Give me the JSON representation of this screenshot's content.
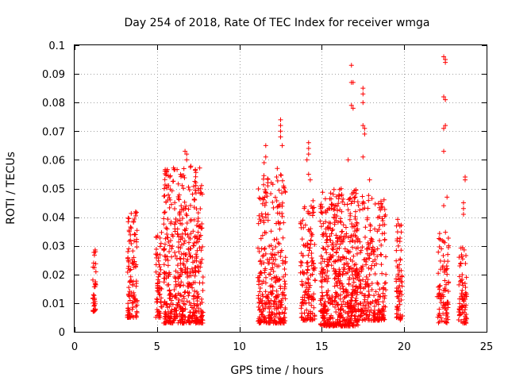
{
  "chart_data": {
    "type": "scatter",
    "title": "Day 254 of 2018, Rate Of TEC Index for receiver wmga",
    "xlabel": "GPS time / hours",
    "ylabel": "ROTI / TECUs",
    "xlim": [
      0,
      25
    ],
    "ylim": [
      0,
      0.1
    ],
    "xticks": [
      0,
      5,
      10,
      15,
      20,
      25
    ],
    "xtick_labels": [
      "0",
      "5",
      "10",
      "15",
      "20",
      "25"
    ],
    "yticks": [
      0,
      0.01,
      0.02,
      0.03,
      0.04,
      0.05,
      0.06,
      0.07,
      0.08,
      0.09,
      0.1
    ],
    "ytick_labels": [
      "0",
      "0.01",
      "0.02",
      "0.03",
      "0.04",
      "0.05",
      "0.06",
      "0.07",
      "0.08",
      "0.09",
      "0.1"
    ],
    "grid": true,
    "marker": "+",
    "color": "#ff0000",
    "clusters": [
      {
        "x_start": 1.1,
        "x_end": 1.3,
        "y_min": 0.007,
        "y_max": 0.03,
        "count": 35
      },
      {
        "x_start": 3.2,
        "x_end": 3.8,
        "y_min": 0.005,
        "y_max": 0.042,
        "count": 110
      },
      {
        "x_start": 4.9,
        "x_end": 5.3,
        "y_min": 0.005,
        "y_max": 0.035,
        "count": 60
      },
      {
        "x_start": 5.4,
        "x_end": 7.8,
        "y_min": 0.003,
        "y_max": 0.058,
        "count": 520
      },
      {
        "x_start": 11.1,
        "x_end": 12.8,
        "y_min": 0.003,
        "y_max": 0.055,
        "count": 320
      },
      {
        "x_start": 13.7,
        "x_end": 14.6,
        "y_min": 0.004,
        "y_max": 0.046,
        "count": 150
      },
      {
        "x_start": 14.9,
        "x_end": 17.2,
        "y_min": 0.002,
        "y_max": 0.05,
        "count": 560
      },
      {
        "x_start": 17.2,
        "x_end": 18.9,
        "y_min": 0.004,
        "y_max": 0.048,
        "count": 260
      },
      {
        "x_start": 19.5,
        "x_end": 19.9,
        "y_min": 0.004,
        "y_max": 0.042,
        "count": 70
      },
      {
        "x_start": 22.0,
        "x_end": 22.7,
        "y_min": 0.003,
        "y_max": 0.035,
        "count": 90
      },
      {
        "x_start": 23.3,
        "x_end": 23.8,
        "y_min": 0.003,
        "y_max": 0.03,
        "count": 75
      }
    ],
    "highlight_points": [
      {
        "x": 6.7,
        "y": 0.063
      },
      {
        "x": 6.8,
        "y": 0.062
      },
      {
        "x": 6.8,
        "y": 0.06
      },
      {
        "x": 11.6,
        "y": 0.065
      },
      {
        "x": 11.6,
        "y": 0.061
      },
      {
        "x": 11.5,
        "y": 0.059
      },
      {
        "x": 12.5,
        "y": 0.074
      },
      {
        "x": 12.5,
        "y": 0.072
      },
      {
        "x": 12.5,
        "y": 0.07
      },
      {
        "x": 12.5,
        "y": 0.068
      },
      {
        "x": 12.6,
        "y": 0.065
      },
      {
        "x": 12.3,
        "y": 0.057
      },
      {
        "x": 14.2,
        "y": 0.066
      },
      {
        "x": 14.2,
        "y": 0.064
      },
      {
        "x": 14.2,
        "y": 0.062
      },
      {
        "x": 14.1,
        "y": 0.06
      },
      {
        "x": 14.2,
        "y": 0.055
      },
      {
        "x": 14.3,
        "y": 0.053
      },
      {
        "x": 16.8,
        "y": 0.093
      },
      {
        "x": 16.8,
        "y": 0.087
      },
      {
        "x": 16.9,
        "y": 0.087
      },
      {
        "x": 16.8,
        "y": 0.079
      },
      {
        "x": 16.9,
        "y": 0.078
      },
      {
        "x": 16.6,
        "y": 0.06
      },
      {
        "x": 17.5,
        "y": 0.085
      },
      {
        "x": 17.5,
        "y": 0.083
      },
      {
        "x": 17.5,
        "y": 0.08
      },
      {
        "x": 17.5,
        "y": 0.072
      },
      {
        "x": 17.6,
        "y": 0.071
      },
      {
        "x": 17.6,
        "y": 0.069
      },
      {
        "x": 17.5,
        "y": 0.061
      },
      {
        "x": 17.9,
        "y": 0.053
      },
      {
        "x": 22.4,
        "y": 0.096
      },
      {
        "x": 22.5,
        "y": 0.095
      },
      {
        "x": 22.5,
        "y": 0.094
      },
      {
        "x": 22.4,
        "y": 0.082
      },
      {
        "x": 22.5,
        "y": 0.081
      },
      {
        "x": 22.5,
        "y": 0.072
      },
      {
        "x": 22.4,
        "y": 0.071
      },
      {
        "x": 22.4,
        "y": 0.063
      },
      {
        "x": 22.6,
        "y": 0.047
      },
      {
        "x": 22.4,
        "y": 0.044
      },
      {
        "x": 23.7,
        "y": 0.054
      },
      {
        "x": 23.7,
        "y": 0.053
      },
      {
        "x": 23.6,
        "y": 0.045
      },
      {
        "x": 23.6,
        "y": 0.043
      },
      {
        "x": 23.6,
        "y": 0.041
      }
    ]
  }
}
